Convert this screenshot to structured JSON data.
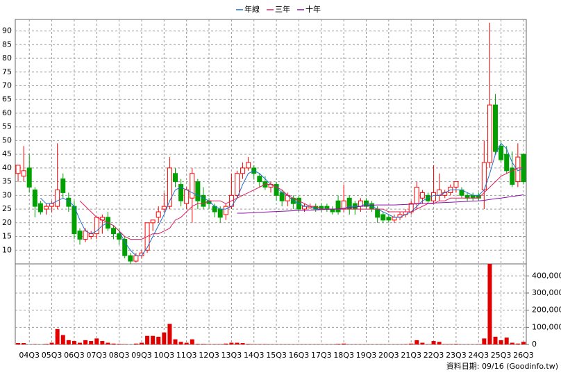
{
  "chart_data": [
    {
      "type": "candlestick",
      "categories": [
        null,
        null,
        "04Q3",
        null,
        null,
        null,
        "05Q3",
        null,
        null,
        null,
        "06Q3",
        null,
        null,
        null,
        "07Q3",
        null,
        null,
        null,
        "08Q3",
        null,
        null,
        null,
        "09Q3",
        null,
        null,
        null,
        "10Q3",
        null,
        null,
        null,
        "11Q3",
        null,
        null,
        null,
        "12Q3",
        null,
        null,
        null,
        "13Q3",
        null,
        null,
        null,
        "14Q3",
        null,
        null,
        null,
        "15Q3",
        null,
        null,
        null,
        "16Q3",
        null,
        null,
        null,
        "17Q3",
        null,
        null,
        null,
        "18Q3",
        null,
        null,
        null,
        "19Q3",
        null,
        null,
        null,
        "20Q3",
        null,
        null,
        null,
        "21Q3",
        null,
        null,
        null,
        "22Q3",
        null,
        null,
        null,
        "23Q3",
        null,
        null,
        null,
        "24Q3",
        null,
        null,
        null,
        "25Q3",
        null,
        null,
        null,
        "26Q3"
      ],
      "open": [
        38,
        37,
        40,
        32,
        27,
        25,
        26,
        26,
        36,
        29,
        26,
        17,
        14,
        15,
        16,
        21,
        22,
        18,
        16,
        14,
        8,
        6,
        8,
        10,
        20,
        22,
        25,
        26,
        38,
        34,
        27,
        29,
        35,
        30,
        28,
        26,
        25,
        23,
        26,
        30,
        38,
        40,
        40,
        37,
        35,
        33,
        34,
        31,
        28,
        29,
        29,
        25,
        25.5,
        26,
        26,
        26,
        25,
        28,
        25,
        29,
        27,
        26,
        28,
        27,
        25,
        23,
        22,
        21,
        22,
        23,
        24,
        27,
        29,
        30,
        28,
        30,
        30,
        31,
        33,
        32,
        30,
        30,
        30,
        32,
        42,
        63,
        48,
        45,
        40,
        35,
        45
      ],
      "high": [
        41,
        48,
        45,
        33,
        28,
        27,
        28,
        49,
        38,
        31,
        28,
        18,
        18,
        17,
        22,
        23,
        24,
        19,
        18,
        15,
        9,
        9,
        10,
        20,
        21,
        26,
        31,
        44,
        40,
        36,
        33,
        40,
        36,
        33,
        29,
        27,
        26,
        27,
        38,
        39,
        42,
        44,
        41,
        38,
        37,
        35,
        35,
        32,
        31,
        30,
        30,
        27,
        27,
        27,
        27,
        27,
        26,
        30,
        34,
        30,
        28,
        29,
        29,
        28,
        26,
        24,
        23,
        23,
        24,
        25,
        28,
        35,
        32,
        31,
        41,
        38,
        32,
        34,
        35,
        33,
        31,
        31,
        31,
        50,
        93,
        67,
        50,
        48,
        46,
        49,
        45
      ],
      "low": [
        35,
        35,
        31,
        22,
        23,
        23,
        24,
        25,
        29,
        24,
        14,
        12,
        13,
        14,
        14,
        16,
        17,
        14,
        12,
        7,
        5,
        5.5,
        7,
        9,
        17,
        20,
        24,
        25,
        33,
        26,
        25,
        20,
        25,
        25,
        25,
        22,
        20,
        21,
        25,
        29,
        36,
        39,
        36,
        33,
        32,
        31,
        28,
        26,
        26,
        25,
        24,
        24,
        25,
        24,
        24,
        24,
        23,
        23,
        24,
        23,
        23,
        24,
        25,
        24,
        20,
        20,
        20,
        20,
        21,
        22,
        23,
        25,
        27,
        27,
        27,
        28,
        29,
        30,
        31,
        29,
        28,
        28,
        28,
        25,
        40,
        45,
        42,
        38,
        33,
        33,
        34
      ],
      "close": [
        41,
        39,
        33,
        26,
        24,
        26,
        27,
        32,
        31,
        26,
        16,
        14,
        17,
        16,
        22,
        22,
        18,
        16,
        14,
        8,
        6,
        8,
        9,
        20,
        21,
        24,
        26,
        40,
        35,
        28,
        32,
        38,
        28,
        26,
        27,
        24,
        22,
        26,
        30,
        38,
        40,
        42,
        38,
        35,
        33,
        34,
        30,
        28,
        30,
        27,
        25,
        26,
        26,
        25,
        25,
        25,
        24,
        24,
        28,
        25,
        25,
        28,
        26,
        25,
        22,
        21,
        21,
        22,
        23,
        24,
        27,
        33,
        31,
        28,
        31,
        32,
        31,
        33,
        35,
        30,
        29,
        29,
        29,
        42,
        63,
        46,
        43,
        39,
        34,
        44,
        35
      ],
      "up_color": "#ff0000",
      "down_color": "#00a000",
      "series": [
        {
          "name": "年線",
          "color": "#1f6fd0",
          "values": [
            null,
            null,
            null,
            null,
            29,
            27,
            27,
            28,
            29,
            28,
            26,
            21,
            17,
            16,
            17,
            19,
            20,
            19,
            17,
            13,
            10,
            8,
            8,
            11,
            15,
            19,
            23,
            28,
            32,
            33,
            32,
            31,
            30,
            29,
            28,
            26,
            25,
            25,
            26,
            29,
            34,
            38,
            39,
            38,
            36,
            34,
            33,
            31,
            30,
            28,
            27,
            26,
            26,
            25,
            25,
            25,
            25,
            25,
            25,
            26,
            26,
            26,
            27,
            26,
            25,
            24,
            23,
            22,
            22,
            23,
            24,
            26,
            28,
            29,
            30,
            30,
            31,
            32,
            32,
            32,
            31,
            30,
            30,
            32,
            38,
            45,
            49,
            47,
            42,
            39,
            40
          ]
        },
        {
          "name": "三年",
          "color": "#e0205a",
          "values": [
            null,
            null,
            null,
            null,
            null,
            null,
            null,
            null,
            null,
            null,
            null,
            28,
            26,
            24,
            22,
            21,
            20,
            19,
            17,
            15,
            14,
            14,
            14,
            15,
            16,
            16,
            17,
            18,
            21,
            22,
            24,
            26,
            27,
            27,
            28,
            28,
            28,
            27,
            28,
            29,
            30,
            31,
            32,
            33,
            34,
            34,
            33,
            32,
            30,
            29,
            28,
            27,
            26,
            26,
            25,
            25,
            25,
            25,
            25,
            25,
            25,
            25,
            25,
            25,
            25,
            25,
            24,
            24,
            24,
            24,
            24,
            25,
            26,
            27,
            27,
            28,
            28,
            29,
            29,
            29,
            29,
            29,
            29,
            31,
            33,
            35,
            37,
            38,
            39,
            40,
            40
          ]
        },
        {
          "name": "十年",
          "color": "#8a10a8",
          "values": [
            null,
            null,
            null,
            null,
            null,
            null,
            null,
            null,
            null,
            null,
            null,
            null,
            null,
            null,
            null,
            null,
            null,
            null,
            null,
            null,
            null,
            null,
            null,
            null,
            null,
            null,
            null,
            null,
            null,
            null,
            null,
            null,
            null,
            null,
            null,
            null,
            null,
            null,
            null,
            23.5,
            23.5,
            23.6,
            23.7,
            23.8,
            23.9,
            24,
            24.1,
            24.2,
            24.3,
            24.4,
            24.5,
            24.5,
            24.6,
            24.7,
            24.8,
            24.9,
            25,
            25.1,
            25.3,
            25.5,
            25.7,
            26,
            26.2,
            26.4,
            26.5,
            26.5,
            26.5,
            26.5,
            26.6,
            26.7,
            26.8,
            26.9,
            27,
            27.1,
            27.2,
            27.3,
            27.4,
            27.5,
            27.6,
            27.7,
            27.8,
            27.9,
            28,
            28.2,
            28.5,
            28.8,
            29,
            29.3,
            29.6,
            29.9,
            30.2
          ]
        }
      ],
      "ylim": [
        5,
        94.2
      ],
      "yticks": [
        10,
        15,
        20,
        25,
        30,
        35,
        40,
        45,
        50,
        55,
        60,
        65,
        70,
        75,
        80,
        85,
        90
      ],
      "grid": true,
      "legend": "top"
    },
    {
      "type": "bar",
      "color": "#e00000",
      "values": [
        8000,
        8000,
        0,
        2000,
        0,
        3000,
        10000,
        90000,
        55000,
        25000,
        20000,
        10000,
        25000,
        20000,
        35000,
        20000,
        10000,
        5000,
        3000,
        2000,
        0,
        5000,
        10000,
        50000,
        50000,
        45000,
        70000,
        120000,
        30000,
        15000,
        10000,
        30000,
        3000,
        3000,
        2000,
        2000,
        2000,
        5000,
        10000,
        10000,
        8000,
        3000,
        2000,
        2000,
        2000,
        1000,
        1000,
        1000,
        1000,
        1000,
        1000,
        1000,
        1000,
        1000,
        1000,
        1000,
        1000,
        3000,
        5000,
        1000,
        1000,
        1000,
        1000,
        1000,
        1000,
        1000,
        1000,
        1000,
        1000,
        2000,
        5000,
        25000,
        10000,
        2000,
        20000,
        15000,
        2000,
        2000,
        3000,
        1000,
        1000,
        1000,
        2000,
        35000,
        470000,
        45000,
        25000,
        40000,
        10000,
        5000,
        15000
      ],
      "ylim": [
        0,
        470000
      ],
      "yticks": [
        0,
        {
          "value": 100000,
          "label": "100,000"
        },
        {
          "value": 200000,
          "label": "200,000"
        },
        {
          "value": 300000,
          "label": "300,000"
        },
        {
          "value": 400000,
          "label": "400,000"
        }
      ],
      "grid": true
    }
  ],
  "footer": "資料日期: 09/16 (Goodinfo.tw)"
}
